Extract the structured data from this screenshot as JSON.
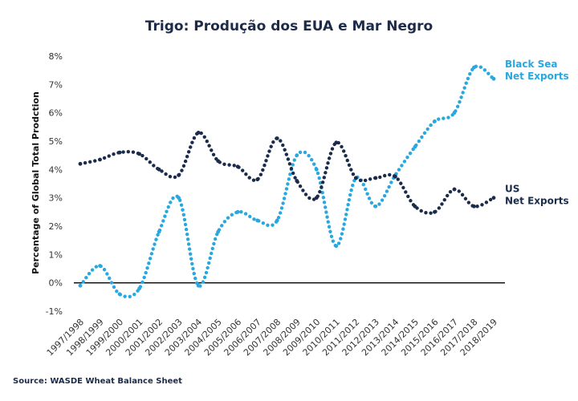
{
  "chart_data": {
    "type": "line",
    "title": "Trigo: Produção dos EUA e Mar Negro",
    "ylabel": "Percentage of Global Total Prodction",
    "xlabel": "",
    "source": "Source: WASDE Wheat Balance Sheet",
    "ylim": [
      -1,
      8
    ],
    "y_ticks": [
      -1,
      0,
      1,
      2,
      3,
      4,
      5,
      6,
      7,
      8
    ],
    "y_tick_labels": [
      "-1%",
      "0%",
      "1%",
      "2%",
      "3%",
      "4%",
      "5%",
      "6%",
      "7%",
      "8%"
    ],
    "categories": [
      "1997/1998",
      "1998/1999",
      "1999/2000",
      "2000/2001",
      "2001/2002",
      "2002/2003",
      "2003/2004",
      "2004/2005",
      "2005/2006",
      "2006/2007",
      "2007/2008",
      "2008/2009",
      "2009/2010",
      "2010/2011",
      "2011/2012",
      "2012/2013",
      "2013/2014",
      "2014/2015",
      "2015/2016",
      "2016/2017",
      "2017/2018",
      "2018/2019"
    ],
    "grid": false,
    "legend": "right",
    "series": [
      {
        "name_lines": [
          "Black Sea",
          "Net Exports"
        ],
        "color": "#29a8e0",
        "label_y": 7.6,
        "values": [
          -0.1,
          0.6,
          -0.4,
          -0.2,
          1.8,
          3.0,
          -0.1,
          1.8,
          2.5,
          2.2,
          2.2,
          4.5,
          4.0,
          1.3,
          3.7,
          2.7,
          3.8,
          4.8,
          5.7,
          6.0,
          7.6,
          7.2
        ]
      },
      {
        "name_lines": [
          "US",
          "Net Exports"
        ],
        "color": "#1b2c4b",
        "label_y": 3.2,
        "values": [
          4.2,
          4.35,
          4.6,
          4.55,
          4.0,
          3.8,
          5.3,
          4.3,
          4.1,
          3.65,
          5.1,
          3.6,
          3.0,
          4.95,
          3.7,
          3.7,
          3.75,
          2.7,
          2.5,
          3.3,
          2.7,
          3.0
        ]
      }
    ]
  }
}
